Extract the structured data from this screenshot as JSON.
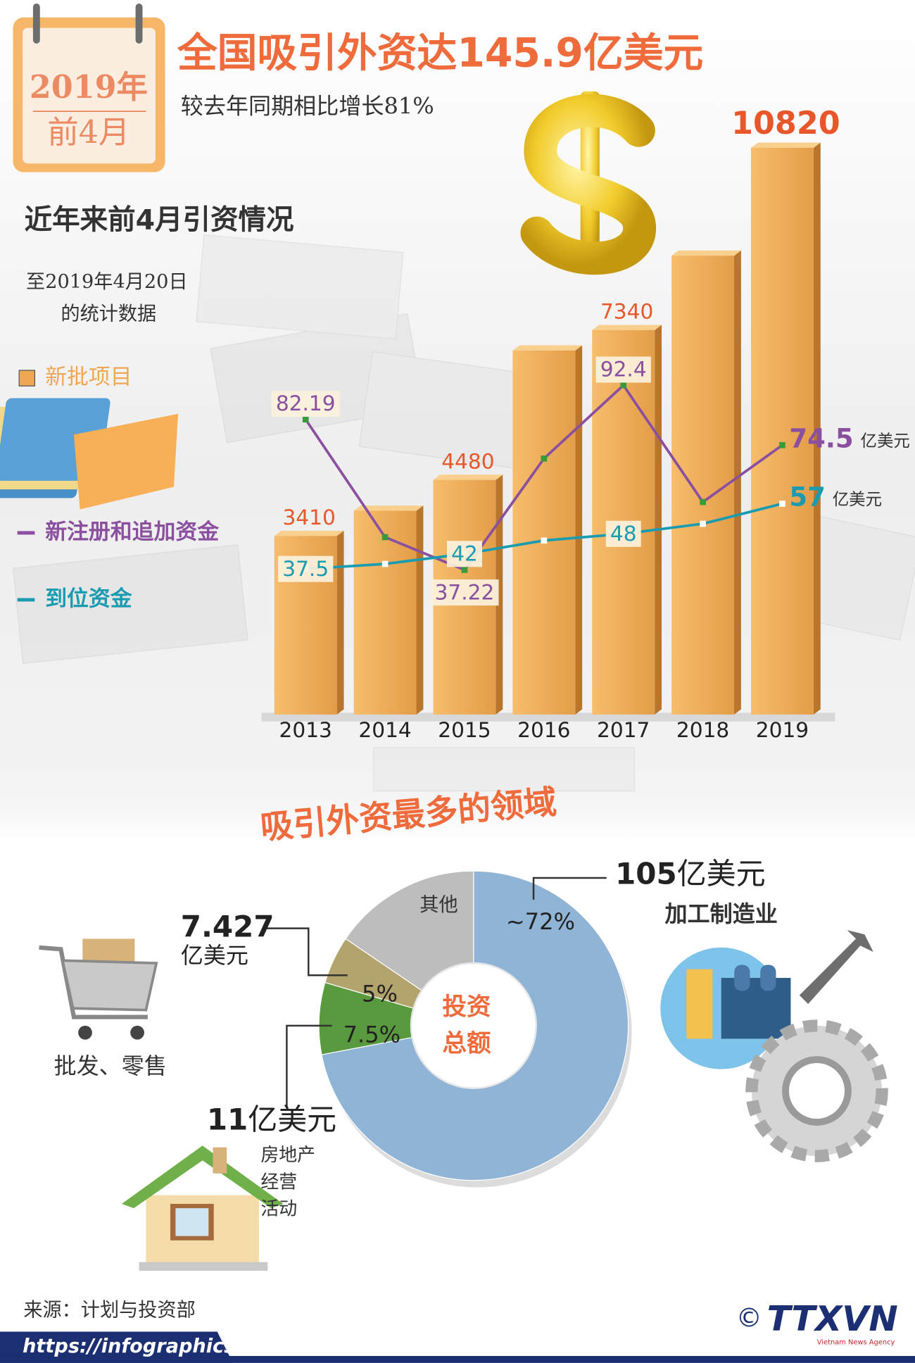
{
  "header": {
    "badge": [
      "2019年",
      "前4月"
    ],
    "title": "全国吸引外资达145.9亿美元",
    "subtitle": "较去年同期相比增长81%"
  },
  "chart_data": [
    {
      "type": "bar",
      "title": "近年来前4月引资情况",
      "note": [
        "至2019年4月20日",
        "的统计数据"
      ],
      "categories": [
        "2013",
        "2014",
        "2015",
        "2016",
        "2017",
        "2018",
        "2019"
      ],
      "series": [
        {
          "name": "新批项目",
          "type": "bar",
          "color": "#eda755",
          "values": [
            3410,
            3890,
            4480,
            6950,
            7340,
            8760,
            10820
          ],
          "value_labels": [
            "3410",
            null,
            "4480",
            null,
            "7340",
            null,
            "10820"
          ]
        },
        {
          "name": "新注册和追加资金",
          "type": "line",
          "axis": "y2",
          "color": "#8a4f9e",
          "unit": "亿美元",
          "values": [
            82.19,
            47,
            37.22,
            70.5,
            92.4,
            57.5,
            74.5
          ],
          "value_labels": [
            "82.19",
            null,
            "37.22",
            null,
            "92.4",
            null,
            "74.5"
          ]
        },
        {
          "name": "到位资金",
          "type": "line",
          "axis": "y2",
          "color": "#1a9bb0",
          "unit": "亿美元",
          "values": [
            37.5,
            39,
            42,
            46,
            48,
            51,
            57
          ],
          "value_labels": [
            "37.5",
            null,
            "42",
            null,
            "48",
            null,
            "57"
          ]
        }
      ],
      "ylim": [
        0,
        11500
      ],
      "y2lim": [
        -6,
        174
      ],
      "legend": "left"
    },
    {
      "type": "donut",
      "title": "吸引外资最多的领域",
      "center_label": [
        "投资",
        "总额"
      ],
      "categories": [
        [
          "加工制造业"
        ],
        [
          "房地产",
          "经营",
          "活动"
        ],
        [
          "批发、零售"
        ],
        [
          "其他"
        ]
      ],
      "values": [
        72,
        7.5,
        5,
        15.5
      ],
      "value_labels": [
        "~72%",
        "7.5%",
        "5%",
        null
      ],
      "amounts": [
        105,
        11,
        7.427,
        null
      ],
      "amount_unit": "亿美元",
      "colors": [
        "#8fb4d6",
        "#5a9a3f",
        "#b3a36c",
        "#bdbdbd"
      ]
    }
  ],
  "footer": {
    "source": "来源：计划与投资部",
    "url": "https://infographics.vn",
    "copyright": "©",
    "logo": "TTXVN",
    "agency": "Vietnam News Agency"
  }
}
